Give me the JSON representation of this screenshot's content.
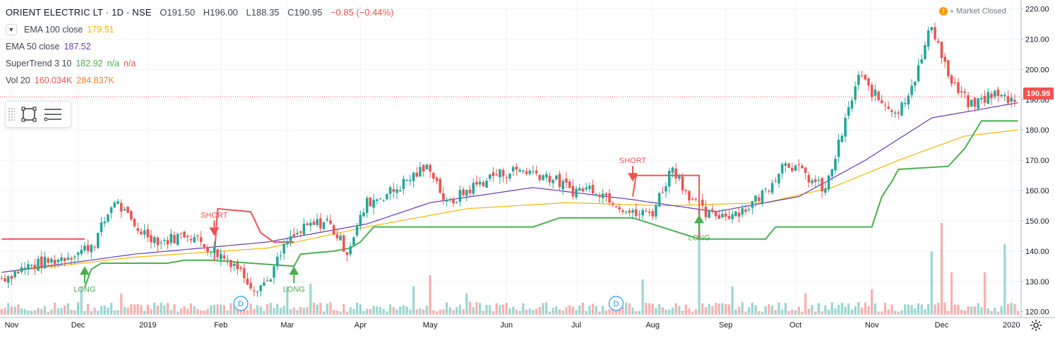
{
  "header": {
    "symbol": "ORIENT ELECTRIC LT · 1D · NSE",
    "open": "O191.50",
    "high": "H196.00",
    "low": "L188.35",
    "close": "C190.95",
    "change": "−0.85 (−0.44%)"
  },
  "legend": {
    "ema100": {
      "name": "EMA 100 close",
      "value": "179.51",
      "color": "#f7b500"
    },
    "ema50": {
      "name": "EMA 50 close",
      "value": "187.52",
      "color": "#673ab7"
    },
    "supertrend": {
      "name": "SuperTrend 3 10",
      "value": "182.92",
      "v2": "n/a",
      "v3": "n/a",
      "color": "#4caf50",
      "color2": "#ef5350"
    },
    "volume": {
      "name": "Vol 20",
      "value": "160.034K",
      "value2": "284.837K",
      "color": "#ef5350",
      "color2": "#ff7f1e"
    }
  },
  "status": {
    "market": "Market Closed",
    "icon": "!"
  },
  "last_price": {
    "label": "190.95",
    "value": 190.95
  },
  "icons": {
    "collapse": "chevron-down-icon",
    "rect_tool": "rectangle-icon",
    "list_tool": "object-tree-icon",
    "settings": "gear-icon"
  },
  "chart_data": {
    "type": "candlestick",
    "ylim": [
      119,
      222
    ],
    "y_ticks": [
      "220.00",
      "210.00",
      "200.00",
      "190.00",
      "180.00",
      "170.00",
      "160.00",
      "150.00",
      "140.00",
      "130.00",
      "120.00"
    ],
    "y_tick_values": [
      220,
      210,
      200,
      190,
      180,
      170,
      160,
      150,
      140,
      130,
      120
    ],
    "x_ticks": [
      "Nov",
      "Dec",
      "2019",
      "Feb",
      "Mar",
      "Apr",
      "May",
      "Jun",
      "Jul",
      "Aug",
      "Sep",
      "Oct",
      "Nov",
      "Dec",
      "2020"
    ],
    "x_tick_index": [
      3,
      23,
      44,
      66,
      86,
      108,
      129,
      152,
      173,
      196,
      218,
      239,
      262,
      283,
      304
    ],
    "bars": 307,
    "key_price_path": [
      [
        0,
        131
      ],
      [
        8,
        135
      ],
      [
        16,
        137
      ],
      [
        24,
        140
      ],
      [
        28,
        143
      ],
      [
        34,
        157
      ],
      [
        40,
        148
      ],
      [
        48,
        143
      ],
      [
        56,
        146
      ],
      [
        64,
        140
      ],
      [
        70,
        136
      ],
      [
        76,
        128
      ],
      [
        80,
        130
      ],
      [
        86,
        143
      ],
      [
        92,
        148
      ],
      [
        98,
        150
      ],
      [
        104,
        140
      ],
      [
        110,
        156
      ],
      [
        118,
        160
      ],
      [
        124,
        165
      ],
      [
        129,
        168
      ],
      [
        134,
        155
      ],
      [
        140,
        160
      ],
      [
        148,
        165
      ],
      [
        156,
        167
      ],
      [
        164,
        165
      ],
      [
        172,
        160
      ],
      [
        178,
        161
      ],
      [
        184,
        157
      ],
      [
        190,
        152
      ],
      [
        196,
        153
      ],
      [
        202,
        168
      ],
      [
        206,
        160
      ],
      [
        212,
        152
      ],
      [
        218,
        152
      ],
      [
        224,
        154
      ],
      [
        230,
        160
      ],
      [
        236,
        170
      ],
      [
        242,
        165
      ],
      [
        248,
        160
      ],
      [
        252,
        175
      ],
      [
        258,
        198
      ],
      [
        264,
        190
      ],
      [
        270,
        186
      ],
      [
        276,
        200
      ],
      [
        280,
        215
      ],
      [
        286,
        195
      ],
      [
        292,
        188
      ],
      [
        298,
        192
      ],
      [
        304,
        190
      ],
      [
        306,
        190.95
      ]
    ],
    "ema50_points": [
      [
        0,
        133
      ],
      [
        40,
        139
      ],
      [
        80,
        143
      ],
      [
        110,
        149
      ],
      [
        129,
        156
      ],
      [
        160,
        161
      ],
      [
        190,
        157
      ],
      [
        215,
        153
      ],
      [
        240,
        158
      ],
      [
        260,
        170
      ],
      [
        280,
        184
      ],
      [
        306,
        189
      ]
    ],
    "ema100_points": [
      [
        0,
        133
      ],
      [
        40,
        138
      ],
      [
        80,
        141
      ],
      [
        110,
        148
      ],
      [
        140,
        154
      ],
      [
        170,
        156
      ],
      [
        200,
        155
      ],
      [
        230,
        156
      ],
      [
        250,
        161
      ],
      [
        270,
        170
      ],
      [
        290,
        178
      ],
      [
        306,
        180
      ]
    ],
    "supertrend_up": [
      [
        25,
        128
      ],
      [
        27,
        134
      ],
      [
        30,
        136
      ],
      [
        50,
        136
      ],
      [
        55,
        137
      ],
      [
        63,
        137
      ],
      [
        88,
        135
      ],
      [
        90,
        139
      ],
      [
        100,
        140
      ],
      [
        105,
        141
      ],
      [
        108,
        143
      ],
      [
        112,
        148
      ],
      [
        118,
        148
      ],
      [
        160,
        148
      ],
      [
        168,
        151
      ],
      [
        190,
        151
      ],
      [
        210,
        144
      ],
      [
        230,
        144
      ],
      [
        233,
        148
      ],
      [
        262,
        148
      ],
      [
        265,
        158
      ],
      [
        268,
        163
      ],
      [
        270,
        167
      ],
      [
        285,
        168
      ],
      [
        290,
        174
      ],
      [
        295,
        183
      ],
      [
        306,
        183
      ]
    ],
    "supertrend_down": [
      [
        0,
        144
      ],
      [
        25,
        144
      ],
      [
        64,
        137
      ],
      [
        65,
        154
      ],
      [
        75,
        153
      ],
      [
        78,
        146
      ],
      [
        82,
        143
      ],
      [
        88,
        143
      ],
      [
        190,
        158
      ],
      [
        191,
        165
      ],
      [
        210,
        165
      ],
      [
        210,
        144
      ]
    ],
    "signals": [
      {
        "label": "LONG",
        "type": "buy",
        "index": 25,
        "price": 135
      },
      {
        "label": "SHORT",
        "type": "sell",
        "index": 64,
        "price": 145
      },
      {
        "label": "LONG",
        "type": "buy",
        "index": 88,
        "price": 135
      },
      {
        "label": "SHORT",
        "type": "sell",
        "index": 190,
        "price": 163
      },
      {
        "label": "LONG",
        "type": "buy",
        "index": 210,
        "price": 152
      }
    ],
    "volume_spikes": [
      [
        24,
        0.2
      ],
      [
        36,
        0.15
      ],
      [
        86,
        0.2
      ],
      [
        93,
        0.22
      ],
      [
        124,
        0.2
      ],
      [
        129,
        0.28
      ],
      [
        140,
        0.15
      ],
      [
        193,
        0.25
      ],
      [
        210,
        0.75
      ],
      [
        220,
        0.2
      ],
      [
        242,
        0.15
      ],
      [
        262,
        0.18
      ],
      [
        280,
        0.45
      ],
      [
        283,
        0.65
      ],
      [
        286,
        0.3
      ],
      [
        296,
        0.3
      ],
      [
        302,
        0.5
      ]
    ],
    "markers": [
      {
        "label": "D",
        "index": 72
      },
      {
        "label": "D",
        "index": 185
      }
    ]
  }
}
